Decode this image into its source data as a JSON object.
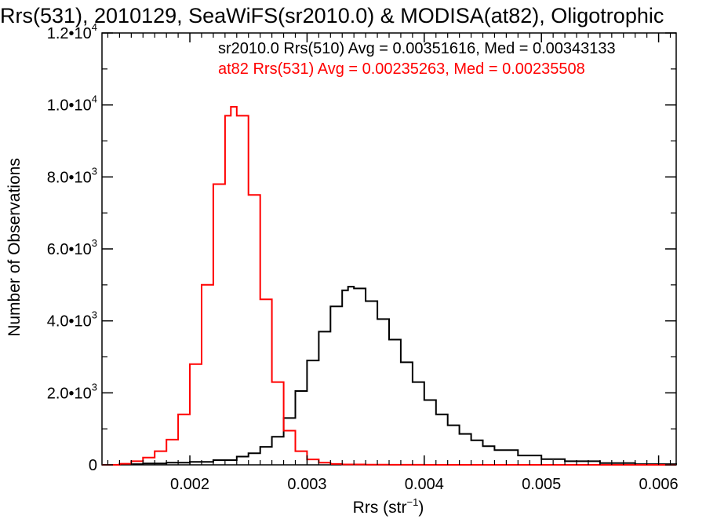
{
  "chart_data": {
    "type": "line",
    "title": "Rrs(531), 2010129, SeaWiFS(sr2010.0) & MODISA(at82), Oligotrophic",
    "xlabel_main": "Rrs (str",
    "xlabel_sup": "−1",
    "xlabel_close": ")",
    "ylabel": "Number of Observations",
    "xlim": [
      0.00125,
      0.00615
    ],
    "ylim": [
      0,
      12000
    ],
    "x_ticks": [
      {
        "value": 0.002,
        "label": "0.002"
      },
      {
        "value": 0.003,
        "label": "0.003"
      },
      {
        "value": 0.004,
        "label": "0.004"
      },
      {
        "value": 0.005,
        "label": "0.005"
      },
      {
        "value": 0.006,
        "label": "0.006"
      }
    ],
    "y_ticks": [
      {
        "value": 0,
        "mant": "0",
        "exp": ""
      },
      {
        "value": 2000,
        "mant": "2.0•10",
        "exp": "3"
      },
      {
        "value": 4000,
        "mant": "4.0•10",
        "exp": "3"
      },
      {
        "value": 6000,
        "mant": "6.0•10",
        "exp": "3"
      },
      {
        "value": 8000,
        "mant": "8.0•10",
        "exp": "3"
      },
      {
        "value": 10000,
        "mant": "1.0•10",
        "exp": "4"
      },
      {
        "value": 12000,
        "mant": "1.2•10",
        "exp": "4"
      }
    ],
    "legend": [
      {
        "text": "sr2010.0 Rrs(510) Avg = 0.00351616, Med = 0.00343133",
        "color": "#000000"
      },
      {
        "text": "at82 Rrs(531) Avg = 0.00235263, Med = 0.00235508",
        "color": "#ff0000"
      }
    ],
    "series": [
      {
        "color": "#000000",
        "x": [
          0.00125,
          0.0014,
          0.0016,
          0.0018,
          0.002,
          0.0022,
          0.0024,
          0.0025,
          0.0026,
          0.0027,
          0.0028,
          0.0029,
          0.003,
          0.0031,
          0.0032,
          0.0033,
          0.00335,
          0.0034,
          0.0035,
          0.0036,
          0.0037,
          0.0038,
          0.0039,
          0.004,
          0.0041,
          0.0042,
          0.0043,
          0.0044,
          0.0045,
          0.0046,
          0.0048,
          0.005,
          0.0052,
          0.0055,
          0.0058,
          0.00615
        ],
        "y": [
          0,
          20,
          40,
          60,
          80,
          130,
          230,
          320,
          500,
          780,
          1300,
          2050,
          2900,
          3700,
          4400,
          4850,
          4950,
          4900,
          4550,
          4050,
          3480,
          2850,
          2300,
          1800,
          1400,
          1100,
          860,
          680,
          520,
          410,
          260,
          160,
          100,
          50,
          20,
          5
        ]
      },
      {
        "color": "#ff0000",
        "x": [
          0.00125,
          0.0014,
          0.0015,
          0.0016,
          0.0017,
          0.0018,
          0.0019,
          0.002,
          0.0021,
          0.0022,
          0.0023,
          0.00235,
          0.0024,
          0.0025,
          0.0026,
          0.0027,
          0.0028,
          0.0029,
          0.003,
          0.0031,
          0.0032,
          0.0033,
          0.0035,
          0.0037,
          0.004,
          0.005,
          0.00615
        ],
        "y": [
          0,
          30,
          100,
          200,
          380,
          700,
          1400,
          2800,
          5000,
          7800,
          9700,
          9950,
          9700,
          7500,
          4600,
          2300,
          950,
          380,
          150,
          60,
          25,
          10,
          4,
          2,
          0,
          0,
          0
        ]
      }
    ],
    "grid": false
  }
}
